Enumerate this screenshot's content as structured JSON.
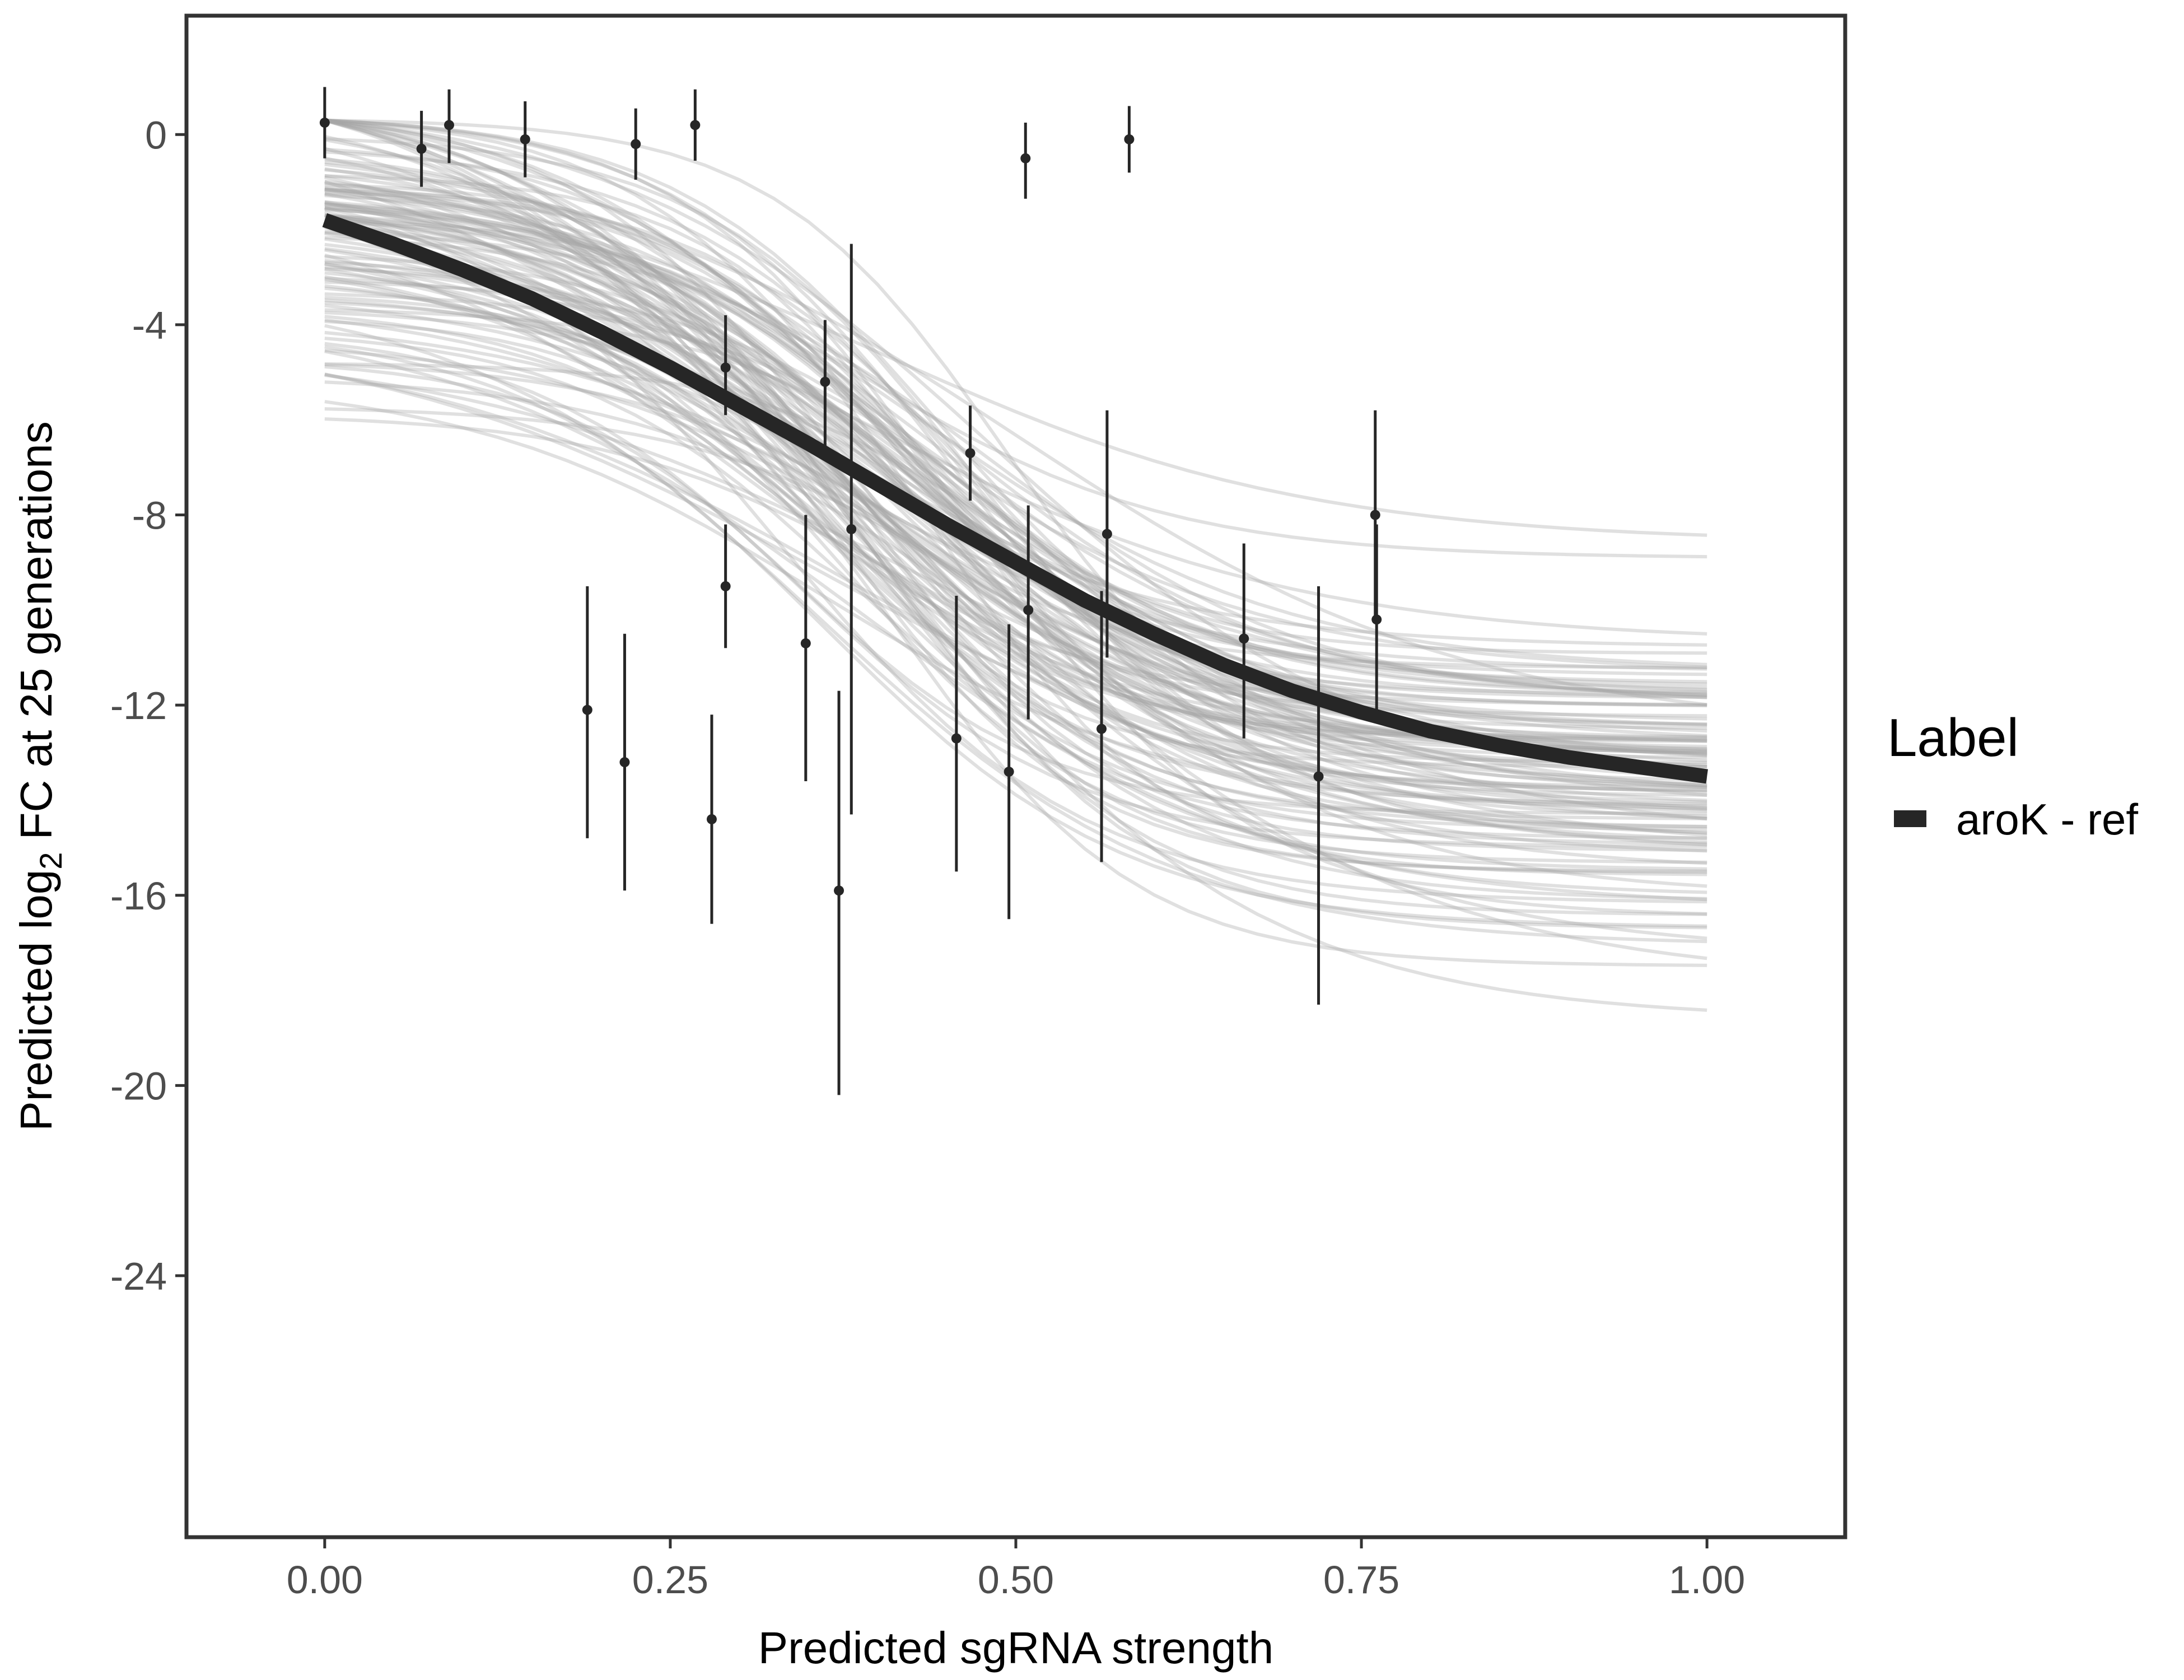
{
  "chart_data": {
    "type": "line",
    "xlabel": "Predicted sgRNA strength",
    "ylabel": {
      "prefix": "Predicted  log",
      "subscript": "2",
      "suffix": " FC at 25 generations"
    },
    "xlim": [
      -0.1,
      1.1
    ],
    "ylim": [
      -29.5,
      2.5
    ],
    "x_ticks": [
      0.0,
      0.25,
      0.5,
      0.75,
      1.0
    ],
    "x_tick_labels": [
      "0.00",
      "0.25",
      "0.50",
      "0.75",
      "1.00"
    ],
    "y_ticks": [
      0,
      -4,
      -8,
      -12,
      -16,
      -20,
      -24
    ],
    "y_tick_labels": [
      "0",
      "-4",
      "-8",
      "-12",
      "-16",
      "-20",
      "-24"
    ],
    "grid": false,
    "legend": {
      "title": "Label",
      "position": "right",
      "entries": [
        {
          "label": "aroK - ref",
          "color": "#262626"
        }
      ]
    },
    "fit_line": {
      "name": "aroK - ref",
      "color": "#262626",
      "x": [
        0.0,
        0.05,
        0.1,
        0.15,
        0.2,
        0.25,
        0.3,
        0.35,
        0.4,
        0.45,
        0.5,
        0.55,
        0.6,
        0.65,
        0.7,
        0.75,
        0.8,
        0.85,
        0.9,
        0.95,
        1.0
      ],
      "y": [
        -1.8,
        -2.3,
        -2.85,
        -3.45,
        -4.15,
        -4.9,
        -5.7,
        -6.5,
        -7.35,
        -8.2,
        -9.0,
        -9.8,
        -10.5,
        -11.15,
        -11.7,
        -12.15,
        -12.55,
        -12.85,
        -13.1,
        -13.3,
        -13.5
      ]
    },
    "posterior_draws": {
      "description_count": 120,
      "color": "#a6a6a6"
    },
    "points": [
      {
        "x": 0.0,
        "y": 0.25,
        "ymin": -0.5,
        "ymax": 1.0
      },
      {
        "x": 0.07,
        "y": -0.3,
        "ymin": -1.1,
        "ymax": 0.5
      },
      {
        "x": 0.09,
        "y": 0.2,
        "ymin": -0.6,
        "ymax": 0.95
      },
      {
        "x": 0.145,
        "y": -0.1,
        "ymin": -0.9,
        "ymax": 0.7
      },
      {
        "x": 0.19,
        "y": -12.1,
        "ymin": -14.8,
        "ymax": -9.5
      },
      {
        "x": 0.217,
        "y": -13.2,
        "ymin": -15.9,
        "ymax": -10.5
      },
      {
        "x": 0.225,
        "y": -0.2,
        "ymin": -0.95,
        "ymax": 0.55
      },
      {
        "x": 0.268,
        "y": 0.2,
        "ymin": -0.55,
        "ymax": 0.95
      },
      {
        "x": 0.28,
        "y": -14.4,
        "ymin": -16.6,
        "ymax": -12.2
      },
      {
        "x": 0.29,
        "y": -4.9,
        "ymin": -5.9,
        "ymax": -3.8
      },
      {
        "x": 0.29,
        "y": -9.5,
        "ymin": -10.8,
        "ymax": -8.2
      },
      {
        "x": 0.348,
        "y": -10.7,
        "ymin": -13.6,
        "ymax": -8.0
      },
      {
        "x": 0.362,
        "y": -5.2,
        "ymin": -6.6,
        "ymax": -3.9
      },
      {
        "x": 0.372,
        "y": -15.9,
        "ymin": -20.2,
        "ymax": -11.7
      },
      {
        "x": 0.381,
        "y": -8.3,
        "ymin": -14.3,
        "ymax": -2.3
      },
      {
        "x": 0.457,
        "y": -12.7,
        "ymin": -15.5,
        "ymax": -9.7
      },
      {
        "x": 0.467,
        "y": -6.7,
        "ymin": -7.7,
        "ymax": -5.7
      },
      {
        "x": 0.495,
        "y": -13.4,
        "ymin": -16.5,
        "ymax": -10.3
      },
      {
        "x": 0.507,
        "y": -0.5,
        "ymin": -1.35,
        "ymax": 0.25
      },
      {
        "x": 0.509,
        "y": -10.0,
        "ymin": -12.3,
        "ymax": -7.8
      },
      {
        "x": 0.562,
        "y": -12.5,
        "ymin": -15.3,
        "ymax": -9.6
      },
      {
        "x": 0.566,
        "y": -8.4,
        "ymin": -11.0,
        "ymax": -5.8
      },
      {
        "x": 0.582,
        "y": -0.1,
        "ymin": -0.8,
        "ymax": 0.6
      },
      {
        "x": 0.665,
        "y": -10.6,
        "ymin": -12.7,
        "ymax": -8.6
      },
      {
        "x": 0.719,
        "y": -13.5,
        "ymin": -18.3,
        "ymax": -9.5
      },
      {
        "x": 0.76,
        "y": -8.0,
        "ymin": -10.2,
        "ymax": -5.8
      },
      {
        "x": 0.761,
        "y": -10.2,
        "ymin": -12.2,
        "ymax": -8.2
      }
    ]
  }
}
